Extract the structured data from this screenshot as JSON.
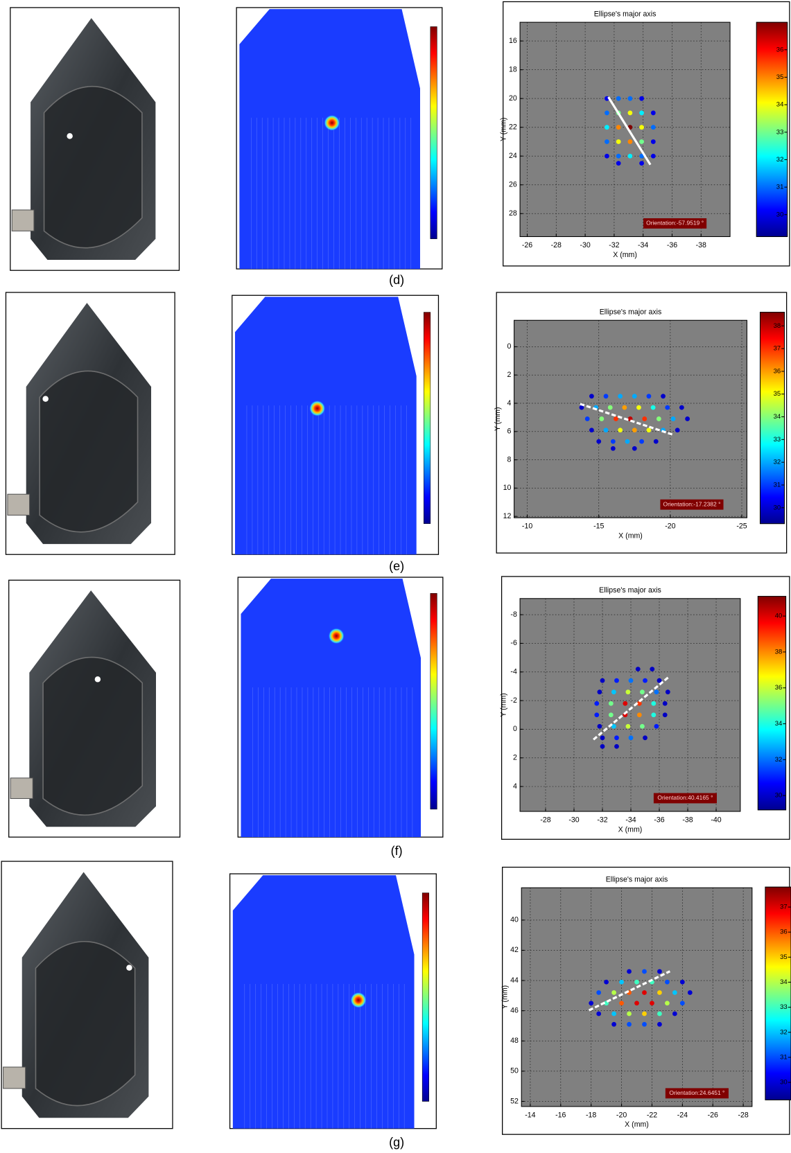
{
  "captions": [
    "(d)",
    "(e)",
    "(f)",
    "(g)"
  ],
  "chart_data": [
    {
      "type": "scatter",
      "title": "Ellipse's major axis",
      "xlabel": "X (mm)",
      "ylabel": "Y (mm)",
      "xlim": [
        -25.5,
        -40
      ],
      "ylim": [
        29.6,
        14.7
      ],
      "xticks": [
        -26,
        -28,
        -30,
        -32,
        -34,
        -36,
        -38
      ],
      "yticks": [
        16,
        18,
        20,
        22,
        24,
        26,
        28
      ],
      "grid": true,
      "x": [
        -31.5,
        -32.3,
        -33.1,
        -33.9,
        -31.5,
        -32.3,
        -33.1,
        -33.9,
        -34.7,
        -31.5,
        -32.3,
        -33.1,
        -33.9,
        -34.7,
        -31.5,
        -32.3,
        -33.1,
        -33.9,
        -34.7,
        -31.5,
        -32.3,
        -33.1,
        -33.9,
        -34.7,
        -32.3,
        -33.9
      ],
      "values": [
        20,
        20,
        20,
        20,
        21,
        21,
        21,
        21,
        21,
        22,
        22,
        22,
        22,
        22,
        23,
        23,
        23,
        23,
        23,
        24,
        24,
        24,
        24,
        24,
        24.5,
        24.5
      ],
      "intensity": [
        30,
        31,
        31,
        30,
        31,
        33,
        34,
        32,
        30,
        32,
        35,
        37,
        34,
        31,
        31,
        34,
        35,
        33,
        30,
        30,
        31,
        32,
        31,
        30,
        30,
        30
      ],
      "axis_line": {
        "x": [
          -31.6,
          -34.5
        ],
        "values": [
          19.9,
          24.6
        ],
        "color": "#ffffff",
        "dashed": false
      },
      "annotation": "Orientation:-57.9519 °",
      "colorbar": {
        "lim": [
          29.2,
          37.0
        ],
        "ticks": [
          30,
          31,
          32,
          33,
          34,
          35,
          36
        ]
      }
    },
    {
      "type": "scatter",
      "title": "Ellipse's major axis",
      "xlabel": "X (mm)",
      "ylabel": "Y (mm)",
      "xlim": [
        -9.08,
        -25.36
      ],
      "ylim": [
        12.1,
        -1.87
      ],
      "xticks": [
        -10,
        -15,
        -20,
        -25
      ],
      "yticks": [
        0,
        2,
        4,
        6,
        8,
        10,
        12
      ],
      "grid": true,
      "x": [
        -14.5,
        -15.5,
        -16.5,
        -17.5,
        -18.5,
        -19.5,
        -13.8,
        -14.8,
        -15.8,
        -16.8,
        -17.8,
        -18.8,
        -19.8,
        -20.8,
        -14.2,
        -15.2,
        -16.2,
        -17.2,
        -18.2,
        -19.2,
        -20.2,
        -21.2,
        -14.5,
        -15.5,
        -16.5,
        -17.5,
        -18.5,
        -19.5,
        -20.5,
        -15,
        -16,
        -17,
        -18,
        -19,
        -16,
        -17.5
      ],
      "values": [
        3.5,
        3.5,
        3.5,
        3.5,
        3.5,
        3.5,
        4.3,
        4.3,
        4.3,
        4.3,
        4.3,
        4.3,
        4.3,
        4.3,
        5.1,
        5.1,
        5.1,
        5.1,
        5.1,
        5.1,
        5.1,
        5.1,
        5.9,
        5.9,
        5.9,
        5.9,
        5.9,
        5.9,
        5.9,
        6.7,
        6.7,
        6.7,
        6.7,
        6.7,
        7.2,
        7.2
      ],
      "intensity": [
        30,
        31,
        32,
        32,
        31,
        30,
        30,
        32,
        34,
        36,
        35,
        33,
        31,
        30,
        31,
        34,
        37,
        38,
        37,
        34,
        32,
        30,
        30,
        32,
        35,
        36,
        35,
        32,
        30,
        30,
        31,
        32,
        31,
        30,
        30,
        30
      ],
      "axis_line": {
        "x": [
          -13.7,
          -20.2
        ],
        "values": [
          4.05,
          6.23
        ],
        "color": "#ffffff",
        "dashed": true
      },
      "annotation": "Orientation:-17.2382 °",
      "colorbar": {
        "lim": [
          29.3,
          38.6
        ],
        "ticks": [
          30,
          31,
          32,
          33,
          34,
          35,
          36,
          37,
          38
        ]
      }
    },
    {
      "type": "scatter",
      "title": "Ellipse's major axis",
      "xlabel": "X (mm)",
      "ylabel": "Y (mm)",
      "xlim": [
        -26.2,
        -41.7
      ],
      "ylim": [
        5.74,
        -9.13
      ],
      "xticks": [
        -28,
        -30,
        -32,
        -34,
        -36,
        -38,
        -40
      ],
      "yticks": [
        -8,
        -6,
        -4,
        -2,
        0,
        2,
        4
      ],
      "grid": true,
      "x": [
        -34.5,
        -35.5,
        -32,
        -33,
        -34,
        -35,
        -36,
        -31.8,
        -32.8,
        -33.8,
        -34.8,
        -35.8,
        -36.6,
        -31.6,
        -32.6,
        -33.6,
        -34.6,
        -35.6,
        -36.4,
        -31.6,
        -32.6,
        -33.6,
        -34.6,
        -35.6,
        -36.4,
        -31.8,
        -32.8,
        -33.8,
        -34.8,
        -35.8,
        -32,
        -33,
        -34,
        -35,
        -32,
        -33
      ],
      "values": [
        -4.2,
        -4.2,
        -3.4,
        -3.4,
        -3.4,
        -3.4,
        -3.4,
        -2.6,
        -2.6,
        -2.6,
        -2.6,
        -2.6,
        -2.6,
        -1.8,
        -1.8,
        -1.8,
        -1.8,
        -1.8,
        -1.8,
        -1,
        -1,
        -1,
        -1,
        -1,
        -1,
        -0.2,
        -0.2,
        -0.2,
        -0.2,
        -0.2,
        0.6,
        0.6,
        0.6,
        0.6,
        1.2,
        1.2
      ],
      "intensity": [
        30,
        30,
        30,
        31,
        32,
        31,
        30,
        30,
        33,
        36,
        35,
        32,
        30,
        31,
        35,
        40,
        39,
        34,
        30,
        31,
        35,
        40,
        38,
        34,
        30,
        30,
        33,
        36,
        35,
        31,
        30,
        31,
        32,
        30,
        30,
        30
      ],
      "axis_line": {
        "x": [
          -31.37,
          -36.65
        ],
        "values": [
          0.72,
          -3.64
        ],
        "color": "#ffffff",
        "dashed": true
      },
      "annotation": "Orientation:40.4165 °",
      "colorbar": {
        "lim": [
          29.2,
          41.1
        ],
        "ticks": [
          30,
          32,
          34,
          36,
          38,
          40
        ]
      }
    },
    {
      "type": "scatter",
      "title": "Ellipse's major axis",
      "xlabel": "X (mm)",
      "ylabel": "Y (mm)",
      "xlim": [
        -13.42,
        -28.58
      ],
      "ylim": [
        52.34,
        37.86
      ],
      "xticks": [
        -14,
        -16,
        -18,
        -20,
        -22,
        -24,
        -26,
        -28
      ],
      "yticks": [
        40,
        42,
        44,
        46,
        48,
        50,
        52
      ],
      "grid": true,
      "x": [
        -20.5,
        -21.5,
        -22.5,
        -19,
        -20,
        -21,
        -22,
        -23,
        -24,
        -18.5,
        -19.5,
        -20.5,
        -21.5,
        -22.5,
        -23.5,
        -24.5,
        -18,
        -19,
        -20,
        -21,
        -22,
        -23,
        -24,
        -18.5,
        -19.5,
        -20.5,
        -21.5,
        -22.5,
        -23.5,
        -19.5,
        -20.5,
        -21.5,
        -22.5
      ],
      "values": [
        43.4,
        43.4,
        43.4,
        44.1,
        44.1,
        44.1,
        44.1,
        44.1,
        44.1,
        44.8,
        44.8,
        44.8,
        44.8,
        44.8,
        44.8,
        44.8,
        45.5,
        45.5,
        45.5,
        45.5,
        45.5,
        45.5,
        45.5,
        46.2,
        46.2,
        46.2,
        46.2,
        46.2,
        46.2,
        46.9,
        46.9,
        46.9,
        46.9
      ],
      "intensity": [
        30,
        31,
        30,
        30,
        32,
        33,
        33,
        31,
        30,
        31,
        34,
        36,
        37,
        35,
        32,
        30,
        30,
        33,
        36,
        37,
        37,
        34,
        31,
        30,
        32,
        34,
        35,
        33,
        30,
        30,
        31,
        31,
        30
      ],
      "axis_line": {
        "x": [
          -17.86,
          -23.18
        ],
        "values": [
          45.97,
          43.39
        ],
        "color": "#ffffff",
        "dashed": true
      },
      "annotation": "Orientation:24.6451 °",
      "colorbar": {
        "lim": [
          29.3,
          37.8
        ],
        "ticks": [
          30,
          31,
          32,
          33,
          34,
          35,
          36,
          37
        ]
      }
    }
  ]
}
